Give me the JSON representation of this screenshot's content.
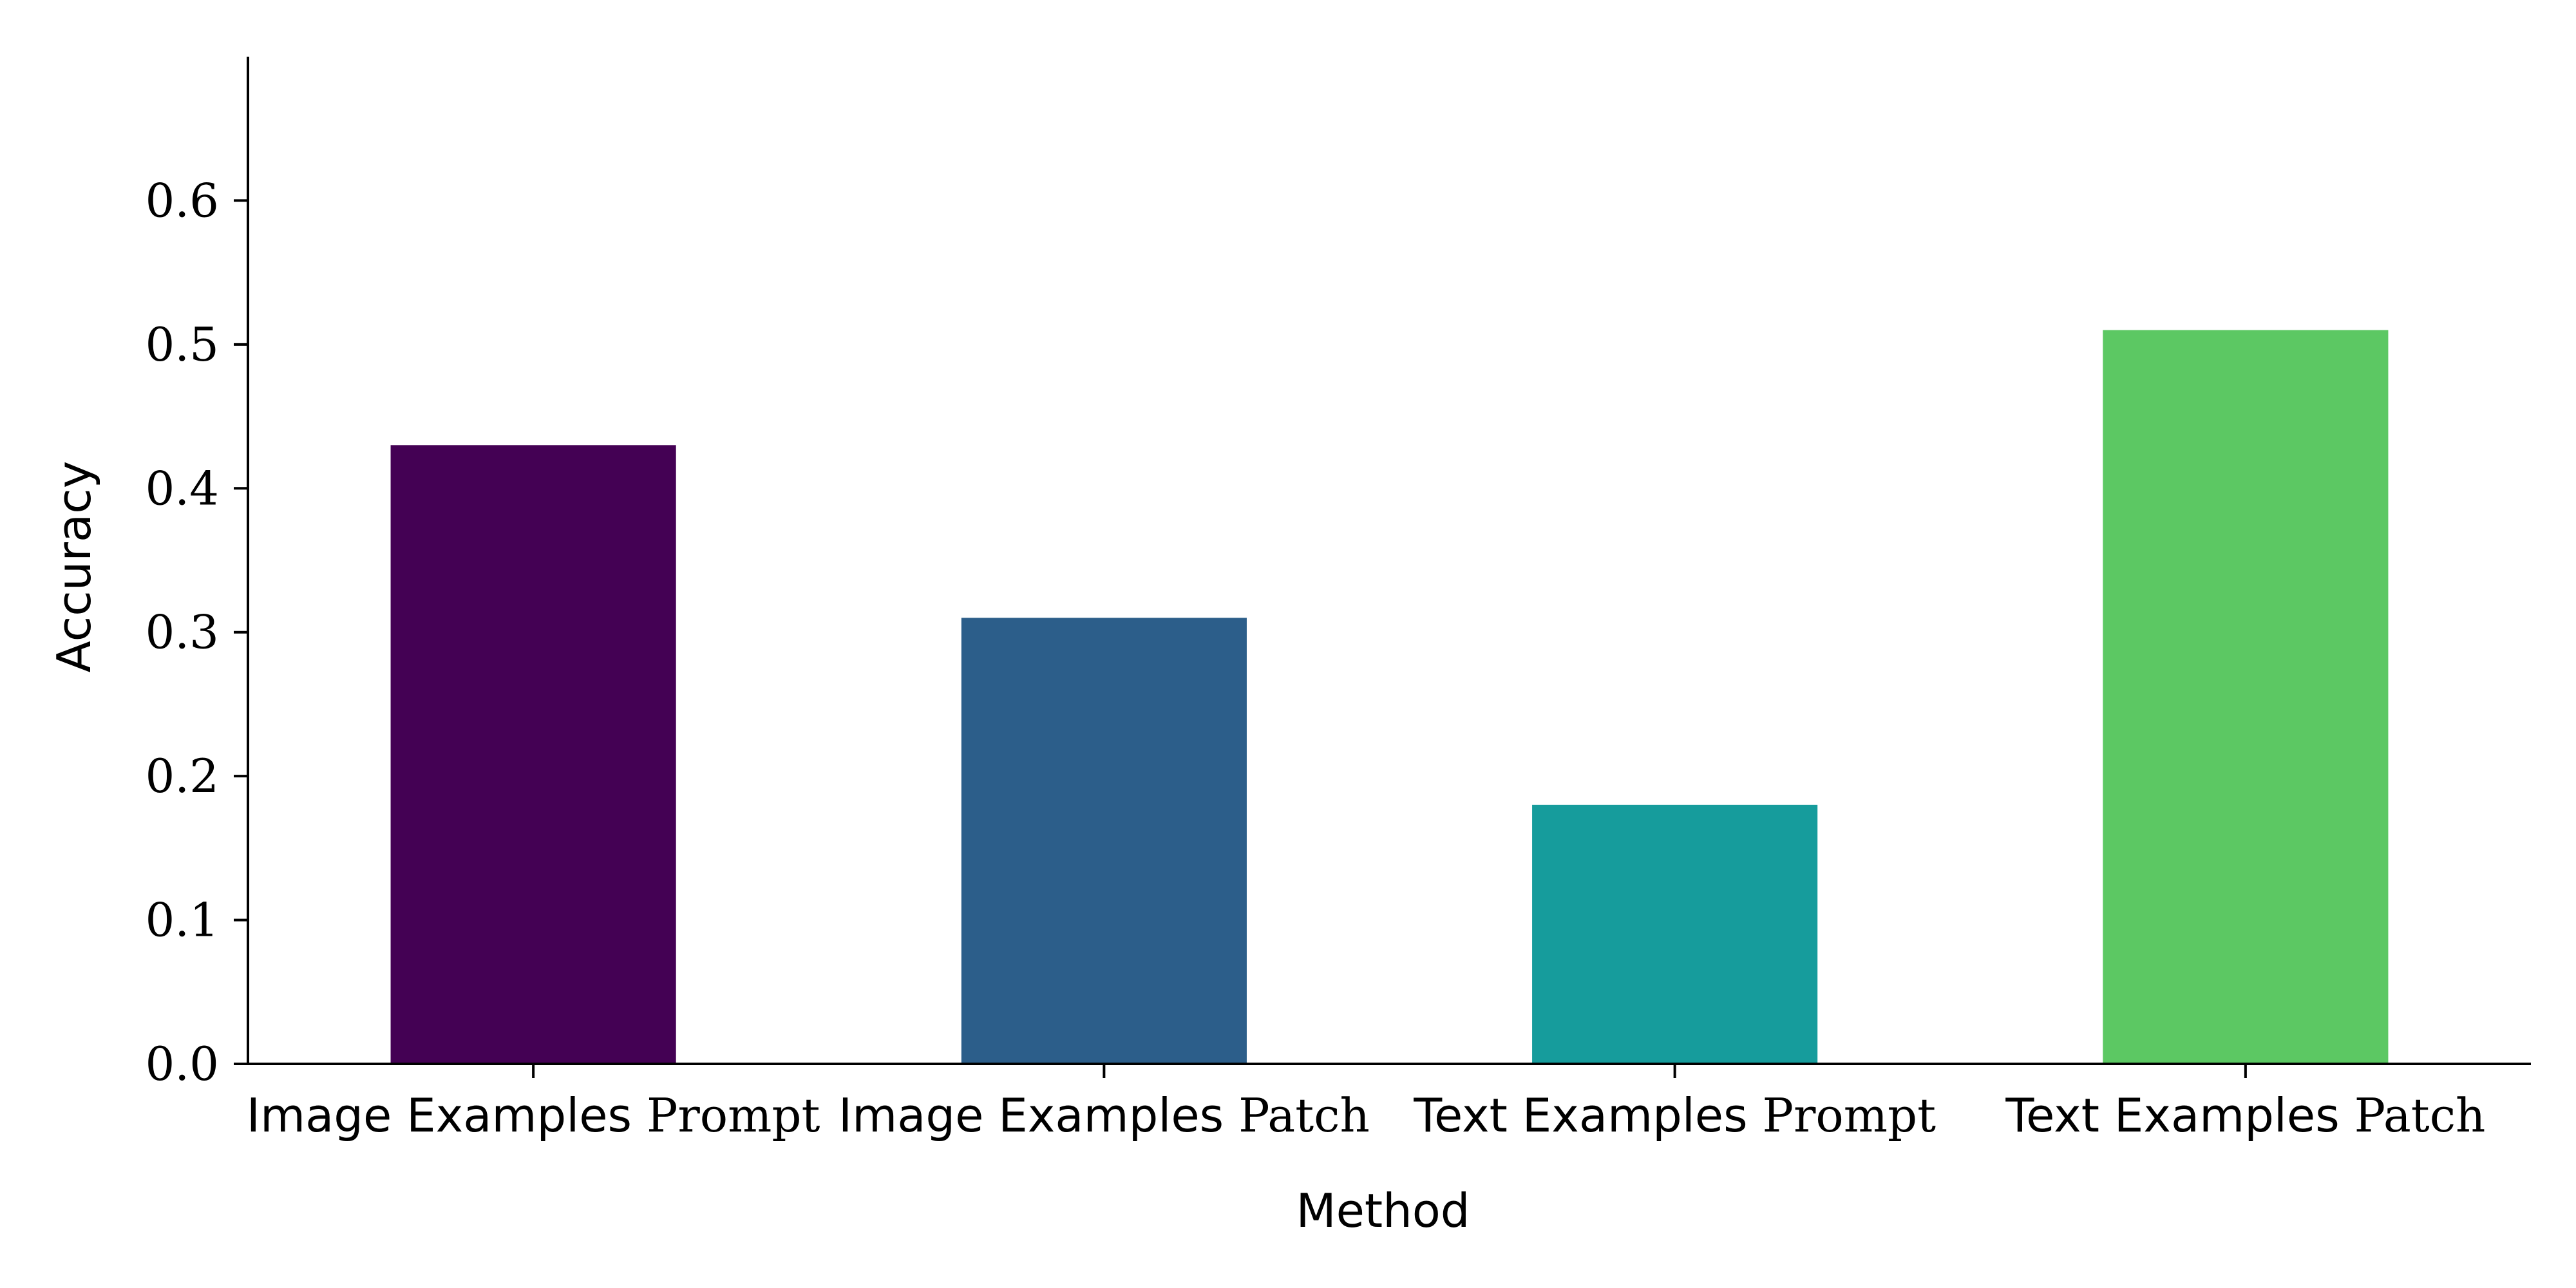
{
  "chart_data": {
    "type": "bar",
    "xlabel": "Method",
    "ylabel": "Accuracy",
    "ylim": [
      0,
      0.7
    ],
    "yticks": [
      "0.0",
      "0.1",
      "0.2",
      "0.3",
      "0.4",
      "0.5",
      "0.6"
    ],
    "grid": false,
    "categories": [
      {
        "sans": "Image Examples",
        "serif": "Prompt"
      },
      {
        "sans": "Image Examples",
        "serif": "Patch"
      },
      {
        "sans": "Text Examples",
        "serif": "Prompt"
      },
      {
        "sans": "Text Examples",
        "serif": "Patch"
      }
    ],
    "values": [
      0.43,
      0.31,
      0.18,
      0.51
    ],
    "colors": [
      "#440154",
      "#2c5e8a",
      "#169c9c",
      "#5cc863"
    ]
  }
}
